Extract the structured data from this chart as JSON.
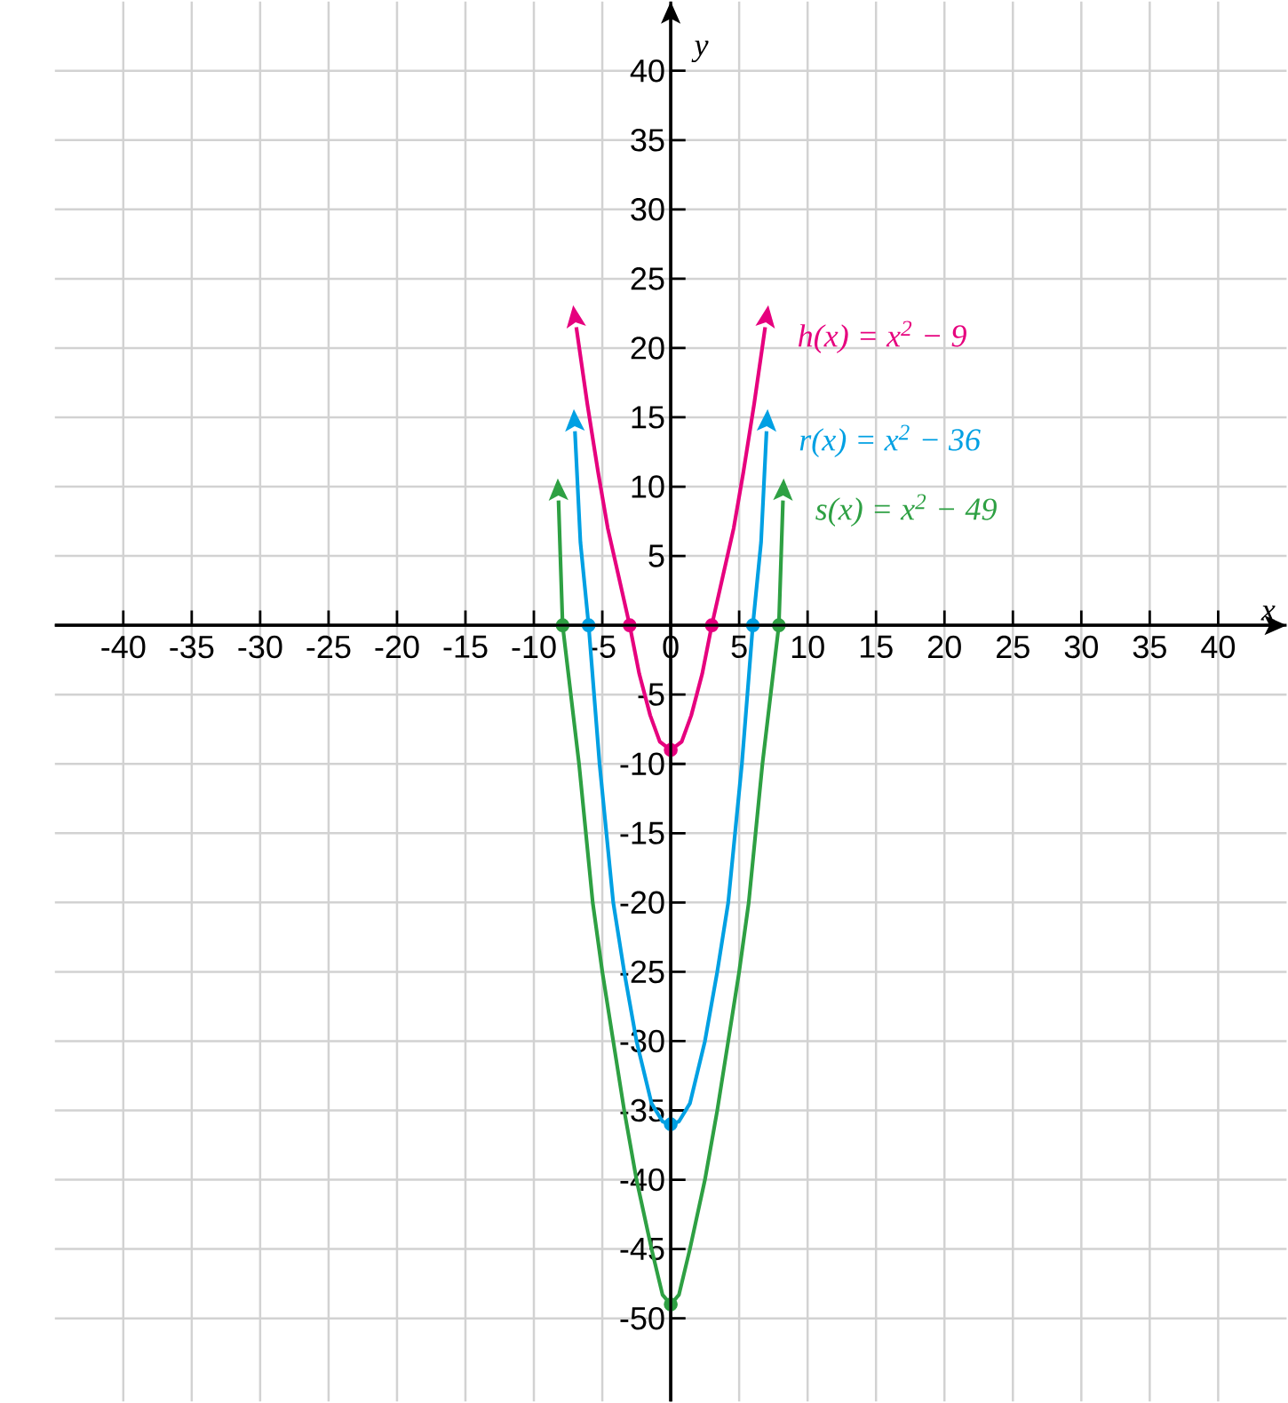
{
  "chart_data": {
    "type": "line",
    "xlabel": "x",
    "ylabel": "y",
    "xlim": [
      -45,
      45
    ],
    "ylim": [
      -56,
      45
    ],
    "xticks": [
      -40,
      -35,
      -30,
      -25,
      -20,
      -15,
      -10,
      -5,
      0,
      5,
      10,
      15,
      20,
      25,
      30,
      35,
      40
    ],
    "yticks": [
      -50,
      -45,
      -40,
      -35,
      -30,
      -25,
      -20,
      -15,
      -10,
      -5,
      5,
      10,
      15,
      20,
      25,
      30,
      35,
      40
    ],
    "grid": true,
    "marker": "none",
    "line_style": "solid",
    "legend": "right",
    "series": [
      {
        "name": "h(x) = x$^{2}$ − 9",
        "color": "#e6007e",
        "x": [
          -6.9,
          -6.1,
          -5.3,
          -4.6,
          -3.8,
          -3,
          -2.3,
          -1.5,
          -0.8,
          0,
          0.8,
          1.5,
          2.3,
          3,
          3.8,
          4.6,
          5.3,
          6.1,
          6.9
        ],
        "values": [
          21.5,
          16,
          11,
          7,
          3.5,
          0,
          -3.5,
          -6.5,
          -8.4,
          -9,
          -8.4,
          -6.5,
          -3.5,
          0,
          3.5,
          7,
          11,
          16,
          21.5
        ]
      },
      {
        "name": "r(x) = x$^{2}$ − 36",
        "color": "#00a0e3",
        "x": [
          -7,
          -6.6,
          -6,
          -5.6,
          -5.2,
          -4.7,
          -4.2,
          -3.4,
          -2.5,
          -1.4,
          -0.6,
          0,
          0.6,
          1.4,
          2.5,
          3.4,
          4.2,
          4.7,
          5.2,
          5.6,
          6,
          6.6,
          7
        ],
        "values": [
          14,
          6,
          0,
          -5,
          -10,
          -15,
          -20,
          -25,
          -30,
          -34.5,
          -35.8,
          -36,
          -35.8,
          -34.5,
          -30,
          -25,
          -20,
          -15,
          -10,
          -5,
          0,
          6,
          14
        ]
      },
      {
        "name": "s(x) = x$^{2}$ − 49",
        "color": "#2ea043",
        "x": [
          -8.2,
          -7.9,
          -7.3,
          -6.7,
          -6.2,
          -5.7,
          -5,
          -4.2,
          -3.4,
          -2.5,
          -1.4,
          -0.6,
          0,
          0.6,
          1.4,
          2.5,
          3.4,
          4.2,
          5,
          5.7,
          6.2,
          6.7,
          7.3,
          7.9,
          8.2
        ],
        "values": [
          9,
          0,
          -5,
          -10,
          -15,
          -20,
          -25,
          -30,
          -35,
          -40,
          -45,
          -48.3,
          -49,
          -48.3,
          -45,
          -40,
          -35,
          -30,
          -25,
          -20,
          -15,
          -10,
          -5,
          0,
          9
        ]
      },
      {
        "type": "scatter",
        "marker": "circle",
        "color": "#e6007e",
        "x": [
          -3,
          0,
          3
        ],
        "values": [
          0,
          -9,
          0
        ]
      },
      {
        "type": "scatter",
        "marker": "circle",
        "color": "#00a0e3",
        "x": [
          -6,
          0,
          6
        ],
        "values": [
          0,
          -36,
          0
        ]
      },
      {
        "type": "scatter",
        "marker": "circle",
        "color": "#2ea043",
        "x": [
          -7.9,
          0,
          7.9
        ],
        "values": [
          0,
          -49,
          0
        ]
      }
    ]
  }
}
